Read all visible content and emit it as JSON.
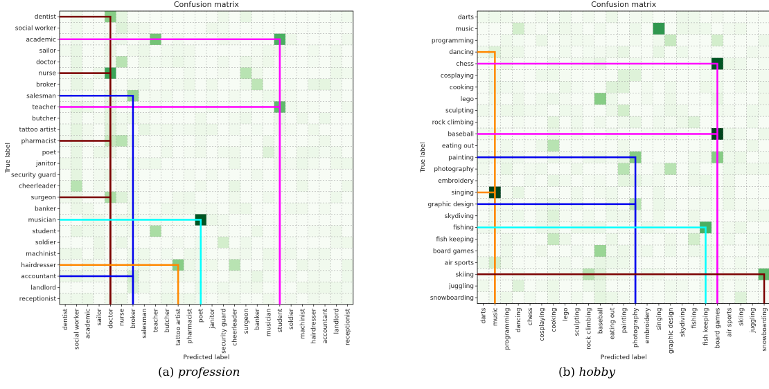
{
  "chart_data": [
    {
      "type": "heatmap",
      "title": "Confusion matrix",
      "xlabel": "Predicted label",
      "ylabel": "True label",
      "grid": true,
      "colormap": "Greens",
      "caption_prefix": "(a)",
      "caption_name": "profession",
      "labels": [
        "dentist",
        "social worker",
        "academic",
        "sailor",
        "doctor",
        "nurse",
        "broker",
        "salesman",
        "teacher",
        "butcher",
        "tattoo artist",
        "pharmacist",
        "poet",
        "janitor",
        "security guard",
        "cheerleader",
        "surgeon",
        "banker",
        "musician",
        "student",
        "soldier",
        "machinist",
        "hairdresser",
        "accountant",
        "landlord",
        "receptionist"
      ],
      "highlight_cells": [
        {
          "row": 0,
          "col": 4,
          "value": 0.45
        },
        {
          "row": 0,
          "col": 5,
          "value": 0.12
        },
        {
          "row": 0,
          "col": 16,
          "value": 0.1
        },
        {
          "row": 1,
          "col": 5,
          "value": 0.15
        },
        {
          "row": 1,
          "col": 1,
          "value": 0.06
        },
        {
          "row": 2,
          "col": 8,
          "value": 0.5
        },
        {
          "row": 2,
          "col": 19,
          "value": 0.6
        },
        {
          "row": 2,
          "col": 1,
          "value": 0.06
        },
        {
          "row": 3,
          "col": 1,
          "value": 0.1
        },
        {
          "row": 3,
          "col": 4,
          "value": 0.08
        },
        {
          "row": 4,
          "col": 5,
          "value": 0.3
        },
        {
          "row": 4,
          "col": 1,
          "value": 0.1
        },
        {
          "row": 4,
          "col": 16,
          "value": 0.08
        },
        {
          "row": 5,
          "col": 4,
          "value": 0.65
        },
        {
          "row": 5,
          "col": 16,
          "value": 0.3
        },
        {
          "row": 5,
          "col": 1,
          "value": 0.1
        },
        {
          "row": 6,
          "col": 17,
          "value": 0.28
        },
        {
          "row": 6,
          "col": 1,
          "value": 0.1
        },
        {
          "row": 6,
          "col": 22,
          "value": 0.1
        },
        {
          "row": 6,
          "col": 23,
          "value": 0.12
        },
        {
          "row": 7,
          "col": 6,
          "value": 0.4
        },
        {
          "row": 7,
          "col": 4,
          "value": 0.1
        },
        {
          "row": 8,
          "col": 19,
          "value": 0.55
        },
        {
          "row": 8,
          "col": 1,
          "value": 0.12
        },
        {
          "row": 8,
          "col": 4,
          "value": 0.12
        },
        {
          "row": 9,
          "col": 4,
          "value": 0.12
        },
        {
          "row": 9,
          "col": 1,
          "value": 0.08
        },
        {
          "row": 10,
          "col": 1,
          "value": 0.12
        },
        {
          "row": 10,
          "col": 4,
          "value": 0.15
        },
        {
          "row": 10,
          "col": 7,
          "value": 0.1
        },
        {
          "row": 11,
          "col": 4,
          "value": 0.25
        },
        {
          "row": 11,
          "col": 5,
          "value": 0.3
        },
        {
          "row": 11,
          "col": 1,
          "value": 0.1
        },
        {
          "row": 12,
          "col": 1,
          "value": 0.1
        },
        {
          "row": 12,
          "col": 18,
          "value": 0.15
        },
        {
          "row": 12,
          "col": 4,
          "value": 0.08
        },
        {
          "row": 13,
          "col": 1,
          "value": 0.1
        },
        {
          "row": 13,
          "col": 25,
          "value": 0.06
        },
        {
          "row": 13,
          "col": 8,
          "value": 0.06
        },
        {
          "row": 14,
          "col": 1,
          "value": 0.12
        },
        {
          "row": 14,
          "col": 4,
          "value": 0.08
        },
        {
          "row": 15,
          "col": 1,
          "value": 0.3
        },
        {
          "row": 15,
          "col": 15,
          "value": 0.1
        },
        {
          "row": 16,
          "col": 4,
          "value": 0.35
        },
        {
          "row": 16,
          "col": 5,
          "value": 0.15
        },
        {
          "row": 16,
          "col": 1,
          "value": 0.08
        },
        {
          "row": 17,
          "col": 1,
          "value": 0.08
        },
        {
          "row": 17,
          "col": 6,
          "value": 0.06
        },
        {
          "row": 18,
          "col": 12,
          "value": 0.95
        },
        {
          "row": 18,
          "col": 5,
          "value": 0.06
        },
        {
          "row": 19,
          "col": 8,
          "value": 0.35
        },
        {
          "row": 19,
          "col": 1,
          "value": 0.1
        },
        {
          "row": 19,
          "col": 2,
          "value": 0.06
        },
        {
          "row": 20,
          "col": 14,
          "value": 0.2
        },
        {
          "row": 20,
          "col": 3,
          "value": 0.08
        },
        {
          "row": 20,
          "col": 5,
          "value": 0.08
        },
        {
          "row": 21,
          "col": 1,
          "value": 0.08
        },
        {
          "row": 21,
          "col": 7,
          "value": 0.06
        },
        {
          "row": 22,
          "col": 10,
          "value": 0.45
        },
        {
          "row": 22,
          "col": 15,
          "value": 0.3
        },
        {
          "row": 23,
          "col": 6,
          "value": 0.2
        },
        {
          "row": 23,
          "col": 1,
          "value": 0.1
        },
        {
          "row": 23,
          "col": 17,
          "value": 0.1
        },
        {
          "row": 24,
          "col": 6,
          "value": 0.15
        },
        {
          "row": 24,
          "col": 24,
          "value": 0.06
        },
        {
          "row": 25,
          "col": 1,
          "value": 0.06
        },
        {
          "row": 25,
          "col": 4,
          "value": 0.05
        }
      ],
      "paths": [
        {
          "color": "#7a0000",
          "row": 0,
          "col": 4
        },
        {
          "color": "#7a0000",
          "row": 5,
          "col": 4
        },
        {
          "color": "#7a0000",
          "row": 11,
          "col": 4
        },
        {
          "color": "#7a0000",
          "row": 16,
          "col": 4
        },
        {
          "color": "#ff00ff",
          "row": 2,
          "col": 19
        },
        {
          "color": "#ff00ff",
          "row": 8,
          "col": 19
        },
        {
          "color": "#0000ee",
          "row": 7,
          "col": 6
        },
        {
          "color": "#0000ee",
          "row": 23,
          "col": 6
        },
        {
          "color": "#00ffff",
          "row": 18,
          "col": 12
        },
        {
          "color": "#ff8800",
          "row": 22,
          "col": 10
        }
      ]
    },
    {
      "type": "heatmap",
      "title": "Confusion matrix",
      "xlabel": "Predicted label",
      "ylabel": "True label",
      "grid": true,
      "colormap": "Greens",
      "caption_prefix": "(b)",
      "caption_name": "hobby",
      "labels": [
        "darts",
        "music",
        "programming",
        "dancing",
        "chess",
        "cosplaying",
        "cooking",
        "lego",
        "sculpting",
        "rock climbing",
        "baseball",
        "eating out",
        "painting",
        "photography",
        "embroidery",
        "singing",
        "graphic design",
        "skydiving",
        "fishing",
        "fish keeping",
        "board games",
        "air sports",
        "skiing",
        "juggling",
        "snowboarding"
      ],
      "highlight_cells": [
        {
          "row": 0,
          "col": 1,
          "value": 0.06
        },
        {
          "row": 0,
          "col": 18,
          "value": 0.06
        },
        {
          "row": 1,
          "col": 15,
          "value": 0.7
        },
        {
          "row": 1,
          "col": 3,
          "value": 0.2
        },
        {
          "row": 2,
          "col": 16,
          "value": 0.25
        },
        {
          "row": 2,
          "col": 20,
          "value": 0.2
        },
        {
          "row": 2,
          "col": 5,
          "value": 0.08
        },
        {
          "row": 3,
          "col": 1,
          "value": 0.15
        },
        {
          "row": 3,
          "col": 12,
          "value": 0.1
        },
        {
          "row": 3,
          "col": 15,
          "value": 0.1
        },
        {
          "row": 4,
          "col": 20,
          "value": 0.95
        },
        {
          "row": 4,
          "col": 10,
          "value": 0.1
        },
        {
          "row": 5,
          "col": 12,
          "value": 0.15
        },
        {
          "row": 5,
          "col": 13,
          "value": 0.15
        },
        {
          "row": 5,
          "col": 1,
          "value": 0.06
        },
        {
          "row": 6,
          "col": 11,
          "value": 0.15
        },
        {
          "row": 6,
          "col": 12,
          "value": 0.15
        },
        {
          "row": 6,
          "col": 1,
          "value": 0.08
        },
        {
          "row": 7,
          "col": 10,
          "value": 0.45
        },
        {
          "row": 7,
          "col": 20,
          "value": 0.1
        },
        {
          "row": 8,
          "col": 12,
          "value": 0.2
        },
        {
          "row": 8,
          "col": 16,
          "value": 0.08
        },
        {
          "row": 9,
          "col": 6,
          "value": 0.12
        },
        {
          "row": 9,
          "col": 18,
          "value": 0.15
        },
        {
          "row": 9,
          "col": 13,
          "value": 0.1
        },
        {
          "row": 10,
          "col": 20,
          "value": 1.0
        },
        {
          "row": 10,
          "col": 6,
          "value": 0.08
        },
        {
          "row": 11,
          "col": 6,
          "value": 0.3
        },
        {
          "row": 12,
          "col": 13,
          "value": 0.45
        },
        {
          "row": 12,
          "col": 20,
          "value": 0.45
        },
        {
          "row": 12,
          "col": 12,
          "value": 0.1
        },
        {
          "row": 13,
          "col": 12,
          "value": 0.3
        },
        {
          "row": 13,
          "col": 16,
          "value": 0.3
        },
        {
          "row": 13,
          "col": 2,
          "value": 0.1
        },
        {
          "row": 14,
          "col": 12,
          "value": 0.12
        },
        {
          "row": 14,
          "col": 6,
          "value": 0.1
        },
        {
          "row": 14,
          "col": 13,
          "value": 0.12
        },
        {
          "row": 15,
          "col": 1,
          "value": 1.0
        },
        {
          "row": 15,
          "col": 3,
          "value": 0.1
        },
        {
          "row": 16,
          "col": 13,
          "value": 0.3
        },
        {
          "row": 16,
          "col": 6,
          "value": 0.1
        },
        {
          "row": 17,
          "col": 6,
          "value": 0.15
        },
        {
          "row": 17,
          "col": 13,
          "value": 0.08
        },
        {
          "row": 18,
          "col": 19,
          "value": 0.6
        },
        {
          "row": 18,
          "col": 6,
          "value": 0.1
        },
        {
          "row": 19,
          "col": 6,
          "value": 0.25
        },
        {
          "row": 19,
          "col": 18,
          "value": 0.2
        },
        {
          "row": 20,
          "col": 10,
          "value": 0.4
        },
        {
          "row": 20,
          "col": 2,
          "value": 0.06
        },
        {
          "row": 21,
          "col": 1,
          "value": 0.2
        },
        {
          "row": 21,
          "col": 10,
          "value": 0.1
        },
        {
          "row": 22,
          "col": 24,
          "value": 0.55
        },
        {
          "row": 22,
          "col": 9,
          "value": 0.3
        },
        {
          "row": 22,
          "col": 10,
          "value": 0.15
        },
        {
          "row": 23,
          "col": 3,
          "value": 0.15
        },
        {
          "row": 23,
          "col": 10,
          "value": 0.1
        },
        {
          "row": 24,
          "col": 22,
          "value": 0.15
        },
        {
          "row": 24,
          "col": 10,
          "value": 0.12
        }
      ],
      "paths": [
        {
          "color": "#ff8800",
          "row": 3,
          "col": 1
        },
        {
          "color": "#ff8800",
          "row": 15,
          "col": 1
        },
        {
          "color": "#ff00ff",
          "row": 4,
          "col": 20
        },
        {
          "color": "#ff00ff",
          "row": 10,
          "col": 20
        },
        {
          "color": "#0000ee",
          "row": 12,
          "col": 13
        },
        {
          "color": "#0000ee",
          "row": 16,
          "col": 13
        },
        {
          "color": "#00ffff",
          "row": 18,
          "col": 19
        },
        {
          "color": "#7a0000",
          "row": 22,
          "col": 24
        }
      ]
    }
  ]
}
